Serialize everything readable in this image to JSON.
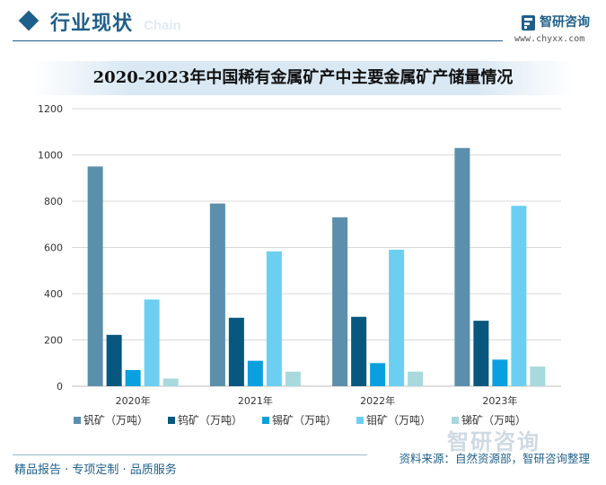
{
  "header": {
    "section_title": "行业现状",
    "ghost_text": "Chain",
    "brand_name": "智研咨询",
    "brand_url": "www.chyxx.com"
  },
  "footer": {
    "tagline": "精品报告 · 专项定制 · 品质服务",
    "source": "资料来源：自然资源部，智研咨询整理",
    "watermark": "智研咨询"
  },
  "colors": {
    "accent": "#1f5f8b",
    "series": [
      "#5b8fab",
      "#07577e",
      "#0aa0df",
      "#6ccff2",
      "#a8d9dc"
    ]
  },
  "chart_data": {
    "type": "bar",
    "title": "2020-2023年中国稀有金属矿产中主要金属矿产储量情况",
    "categories": [
      "2020年",
      "2021年",
      "2022年",
      "2023年"
    ],
    "series": [
      {
        "name": "钒矿（万吨）",
        "values": [
          950,
          790,
          730,
          1030
        ]
      },
      {
        "name": "钨矿（万吨）",
        "values": [
          222,
          296,
          300,
          283
        ]
      },
      {
        "name": "锡矿（万吨）",
        "values": [
          70,
          110,
          100,
          115
        ]
      },
      {
        "name": "钼矿（万吨）",
        "values": [
          375,
          583,
          590,
          780
        ]
      },
      {
        "name": "锑矿（万吨）",
        "values": [
          33,
          63,
          63,
          85
        ]
      }
    ],
    "yticks": [
      "0",
      "200",
      "400",
      "600",
      "800",
      "1000",
      "1200"
    ],
    "ylim": [
      0,
      1200
    ],
    "grid": true,
    "legend": "bottom"
  }
}
